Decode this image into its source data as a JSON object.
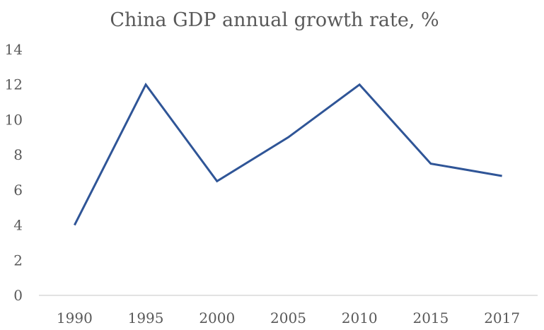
{
  "chart_data": {
    "type": "line",
    "title": "China GDP annual growth rate, %",
    "xlabel": "",
    "ylabel": "",
    "categories": [
      "1990",
      "1995",
      "2000",
      "2005",
      "2010",
      "2015",
      "2017"
    ],
    "series": [
      {
        "name": "China GDP annual growth rate",
        "values": [
          4,
          12,
          6.5,
          9,
          12,
          7.5,
          6.8
        ],
        "color": "#2F5597"
      }
    ],
    "ylim": [
      0,
      14
    ],
    "yticks": [
      0,
      2,
      4,
      6,
      8,
      10,
      12,
      14
    ],
    "grid": false,
    "legend": "none",
    "colors": {
      "text": "#595959",
      "axis": "#D9D9D9"
    }
  }
}
